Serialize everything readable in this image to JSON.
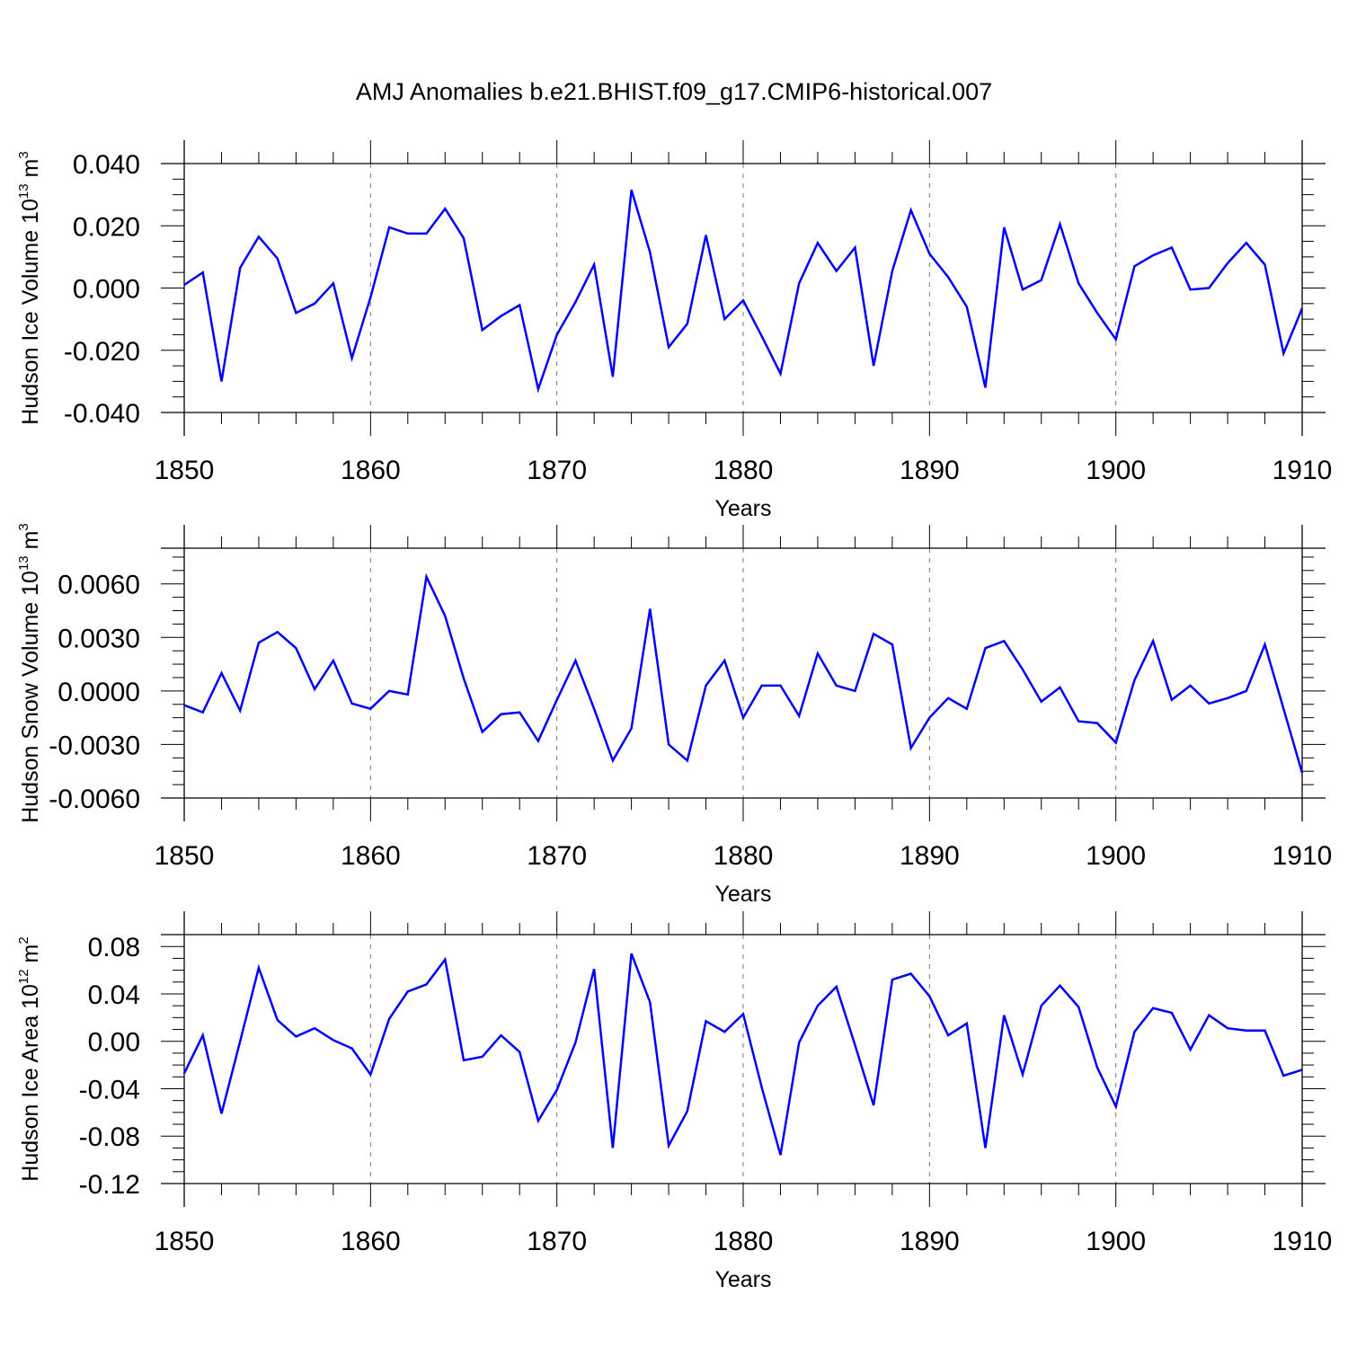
{
  "title": "AMJ Anomalies b.e21.BHIST.f09_g17.CMIP6-historical.007",
  "colors": {
    "series": "#0000ff",
    "axis": "#000000",
    "grid": "#777777"
  },
  "chart_data": [
    {
      "type": "line",
      "ylabel": {
        "text": "Hudson Ice Volume 10",
        "sup": "13",
        "unit": " m",
        "unit_sup": "3"
      },
      "xlabel": "Years",
      "xlim": [
        1850,
        1910
      ],
      "ylim": [
        -0.04,
        0.04
      ],
      "x_ticks": [
        1850,
        1860,
        1870,
        1880,
        1890,
        1900,
        1910
      ],
      "y_ticks": [
        "-0.040",
        "-0.020",
        "0.000",
        "0.020",
        "0.040"
      ],
      "y_tick_values": [
        -0.04,
        -0.02,
        0.0,
        0.02,
        0.04
      ],
      "grid": "vertical dashed at decades",
      "series": [
        {
          "x_start": 1850,
          "values": [
            0.001,
            0.005,
            -0.03,
            0.0065,
            0.0165,
            0.0095,
            -0.008,
            -0.005,
            0.0015,
            -0.0225,
            -0.003,
            0.0195,
            0.0175,
            0.0175,
            0.0255,
            0.016,
            -0.0135,
            -0.009,
            -0.0055,
            -0.0325,
            -0.015,
            -0.0045,
            0.0075,
            -0.0285,
            0.0315,
            0.0115,
            -0.019,
            -0.0115,
            0.017,
            -0.01,
            -0.004,
            -0.0155,
            -0.0275,
            0.0015,
            0.0145,
            0.0055,
            0.013,
            -0.025,
            0.0055,
            0.025,
            0.011,
            0.0035,
            -0.006,
            -0.032,
            0.0195,
            -0.0005,
            0.0025,
            0.0205,
            0.0015,
            -0.008,
            -0.0165,
            0.007,
            0.0105,
            0.013,
            -0.0005,
            0.0,
            0.008,
            0.0145,
            0.0075,
            -0.021,
            -0.0065
          ]
        }
      ]
    },
    {
      "type": "line",
      "ylabel": {
        "text": "Hudson Snow Volume 10",
        "sup": "13",
        "unit": " m",
        "unit_sup": "3"
      },
      "xlabel": "Years",
      "xlim": [
        1850,
        1910
      ],
      "ylim": [
        -0.006,
        0.008
      ],
      "x_ticks": [
        1850,
        1860,
        1870,
        1880,
        1890,
        1900,
        1910
      ],
      "y_ticks": [
        "-0.0060",
        "-0.0030",
        "0.0000",
        "0.0030",
        "0.0060"
      ],
      "y_tick_values": [
        -0.006,
        -0.003,
        0.0,
        0.003,
        0.006
      ],
      "grid": "vertical dashed at decades",
      "series": [
        {
          "x_start": 1850,
          "values": [
            -0.0008,
            -0.0012,
            0.001,
            -0.0011,
            0.0027,
            0.0033,
            0.0024,
            0.0001,
            0.0017,
            -0.0007,
            -0.001,
            0.0,
            -0.0002,
            0.0064,
            0.0042,
            0.0007,
            -0.0023,
            -0.0013,
            -0.0012,
            -0.0028,
            -0.0005,
            0.0017,
            -0.001,
            -0.0039,
            -0.0021,
            0.0046,
            -0.003,
            -0.0039,
            0.0003,
            0.0017,
            -0.0015,
            0.0003,
            0.0003,
            -0.0014,
            0.0021,
            0.0003,
            0.0,
            0.0032,
            0.0026,
            -0.0032,
            -0.0015,
            -0.0004,
            -0.001,
            0.0024,
            0.0028,
            0.0012,
            -0.0006,
            0.0002,
            -0.0017,
            -0.0018,
            -0.0029,
            0.0006,
            0.0028,
            -0.0005,
            0.0003,
            -0.0007,
            -0.0004,
            0.0,
            0.0026,
            -0.001,
            -0.0046
          ]
        }
      ]
    },
    {
      "type": "line",
      "ylabel": {
        "text": "Hudson Ice Area 10",
        "sup": "12",
        "unit": " m",
        "unit_sup": "2"
      },
      "xlabel": "Years",
      "xlim": [
        1850,
        1910
      ],
      "ylim": [
        -0.12,
        0.09
      ],
      "x_ticks": [
        1850,
        1860,
        1870,
        1880,
        1890,
        1900,
        1910
      ],
      "y_ticks": [
        "-0.12",
        "-0.08",
        "-0.04",
        "0.00",
        "0.04",
        "0.08"
      ],
      "y_tick_values": [
        -0.12,
        -0.08,
        -0.04,
        0.0,
        0.04,
        0.08
      ],
      "grid": "vertical dashed at decades",
      "series": [
        {
          "x_start": 1850,
          "values": [
            -0.027,
            0.005,
            -0.061,
            0.0,
            0.062,
            0.018,
            0.004,
            0.011,
            0.001,
            -0.006,
            -0.028,
            0.019,
            0.042,
            0.048,
            0.069,
            -0.016,
            -0.013,
            0.005,
            -0.009,
            -0.067,
            -0.041,
            -0.001,
            0.061,
            -0.09,
            0.074,
            0.033,
            -0.088,
            -0.059,
            0.017,
            0.008,
            0.023,
            -0.039,
            -0.096,
            -0.001,
            0.03,
            0.046,
            -0.003,
            -0.054,
            0.052,
            0.057,
            0.038,
            0.005,
            0.015,
            -0.09,
            0.022,
            -0.028,
            0.03,
            0.047,
            0.029,
            -0.022,
            -0.055,
            0.008,
            0.028,
            0.024,
            -0.007,
            0.022,
            0.011,
            0.009,
            0.009,
            -0.029,
            -0.024
          ]
        }
      ]
    }
  ]
}
